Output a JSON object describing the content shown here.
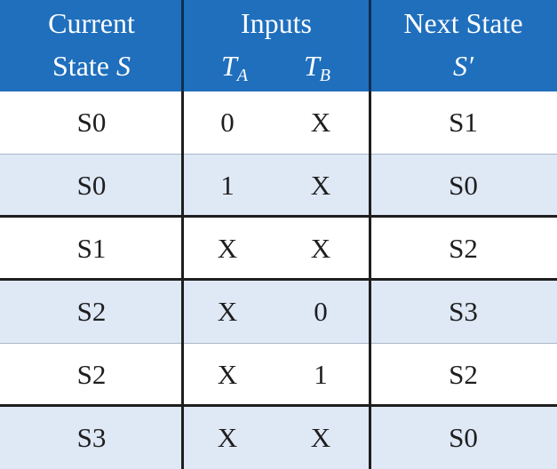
{
  "header": {
    "current_state_line1": "Current",
    "current_state_line2": "State",
    "current_state_symbol": "S",
    "inputs": "Inputs",
    "ta_base": "T",
    "ta_sub": "A",
    "tb_base": "T",
    "tb_sub": "B",
    "next_state_line1": "Next State",
    "next_state_symbol": "S′"
  },
  "rows": [
    {
      "state": "S0",
      "ta": "0",
      "tb": "X",
      "next": "S1"
    },
    {
      "state": "S0",
      "ta": "1",
      "tb": "X",
      "next": "S0"
    },
    {
      "state": "S1",
      "ta": "X",
      "tb": "X",
      "next": "S2"
    },
    {
      "state": "S2",
      "ta": "X",
      "tb": "0",
      "next": "S3"
    },
    {
      "state": "S2",
      "ta": "X",
      "tb": "1",
      "next": "S2"
    },
    {
      "state": "S3",
      "ta": "X",
      "tb": "X",
      "next": "S0"
    }
  ],
  "colors": {
    "header_bg": "#1f6fbd",
    "shaded_row": "#dfe8f5",
    "text": "#1e1e1e"
  }
}
